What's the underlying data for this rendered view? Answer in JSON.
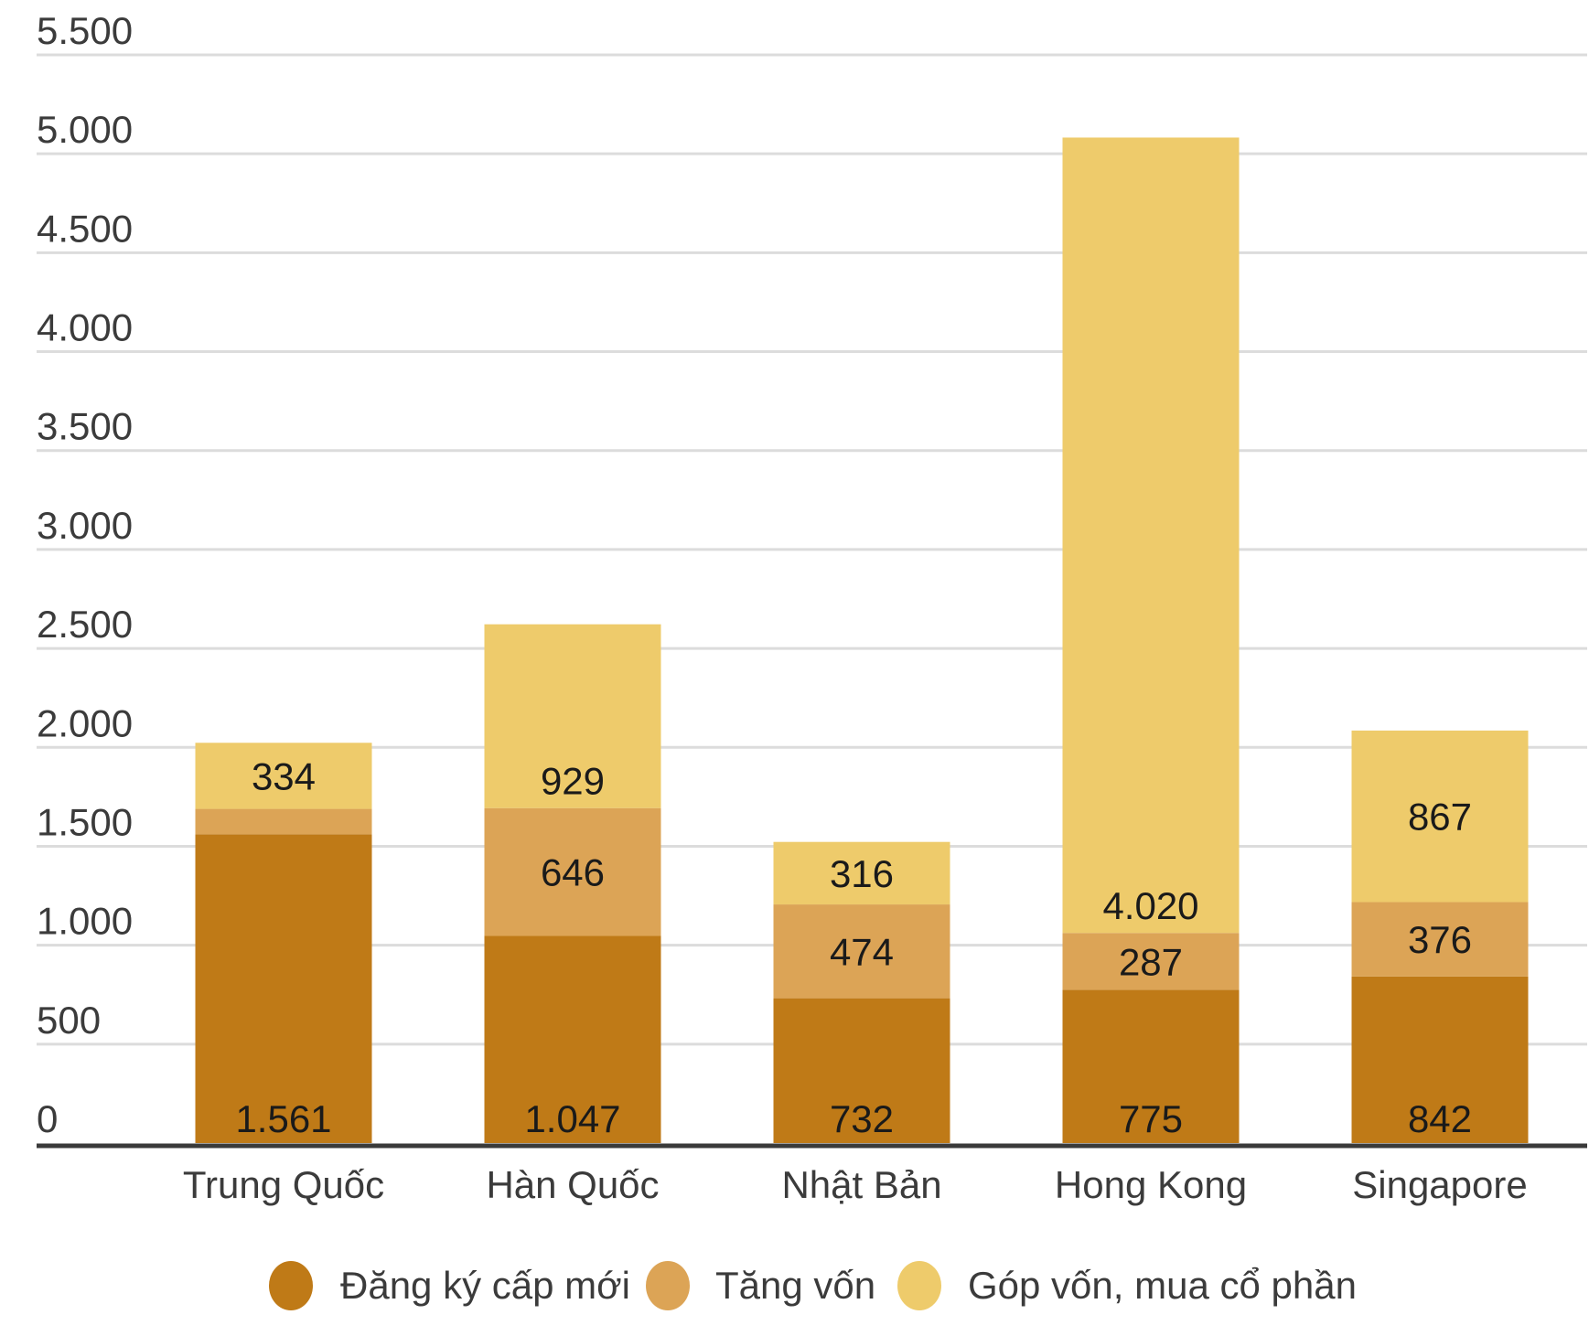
{
  "chart_data": {
    "type": "bar",
    "stacked": true,
    "categories": [
      "Trung Quốc",
      "Hàn Quốc",
      "Nhật Bản",
      "Hong Kong",
      "Singapore"
    ],
    "series": [
      {
        "name": "Đăng ký cấp mới",
        "color": "#bf7a17",
        "values": [
          1561,
          1047,
          732,
          775,
          842
        ],
        "labels": [
          "1.561",
          "1.047",
          "732",
          "775",
          "842"
        ]
      },
      {
        "name": "Tăng vốn",
        "color": "#dca456",
        "values": [
          128,
          646,
          474,
          287,
          376
        ],
        "labels": [
          "",
          "646",
          "474",
          "287",
          "376"
        ]
      },
      {
        "name": "Góp vốn, mua cổ phần",
        "color": "#eecb6b",
        "values": [
          334,
          929,
          316,
          4020,
          867
        ],
        "labels": [
          "334",
          "929",
          "316",
          "4.020",
          "867"
        ]
      }
    ],
    "ylim": [
      0,
      5500
    ],
    "yticks": [
      0,
      500,
      1000,
      1500,
      2000,
      2500,
      3000,
      3500,
      4000,
      4500,
      5000,
      5500
    ],
    "ytick_labels": [
      "0",
      "500",
      "1.000",
      "1.500",
      "2.000",
      "2.500",
      "3.000",
      "3.500",
      "4.000",
      "4.500",
      "5.000",
      "5.500"
    ],
    "grid": true,
    "legend": "bottom"
  }
}
